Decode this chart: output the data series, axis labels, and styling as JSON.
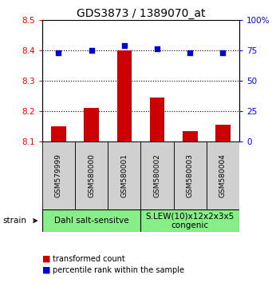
{
  "title": "GDS3873 / 1389070_at",
  "samples": [
    "GSM579999",
    "GSM580000",
    "GSM580001",
    "GSM580002",
    "GSM580003",
    "GSM580004"
  ],
  "bar_values": [
    8.15,
    8.21,
    8.4,
    8.245,
    8.135,
    8.155
  ],
  "bar_base": 8.1,
  "percentile_values": [
    73,
    75,
    79,
    76,
    73,
    73
  ],
  "ylim_left": [
    8.1,
    8.5
  ],
  "ylim_right": [
    0,
    100
  ],
  "bar_color": "#cc0000",
  "dot_color": "#0000cc",
  "yticks_left": [
    8.1,
    8.2,
    8.3,
    8.4,
    8.5
  ],
  "yticks_right": [
    0,
    25,
    50,
    75,
    100
  ],
  "groups": [
    {
      "label": "Dahl salt-sensitve",
      "start": 0,
      "end": 2,
      "color": "#88ee88"
    },
    {
      "label": "S.LEW(10)x12x2x3x5\ncongenic",
      "start": 3,
      "end": 5,
      "color": "#88ee88"
    }
  ],
  "legend_items": [
    {
      "color": "#cc0000",
      "label": "transformed count"
    },
    {
      "color": "#0000cc",
      "label": "percentile rank within the sample"
    }
  ],
  "strain_label": "strain",
  "bg_color": "#ffffff",
  "sample_box_color": "#d0d0d0",
  "title_fontsize": 10,
  "tick_fontsize": 7.5,
  "sample_fontsize": 6.5,
  "group_fontsize": 7.5,
  "legend_fontsize": 7
}
